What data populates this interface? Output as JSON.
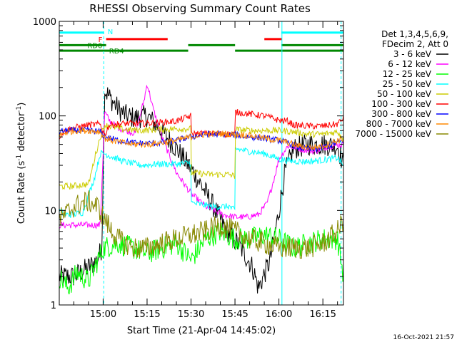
{
  "chart_data": {
    "type": "line",
    "title": "RHESSI Observing Summary Count Rates",
    "xlabel": "Start Time (21-Apr-04 14:45:02)",
    "ylabel_main": "Count Rate (s",
    "ylabel_sup1": "-1",
    "ylabel_mid": " detector",
    "ylabel_sup2": "-1",
    "ylabel_end": ")",
    "timestamp": "16-Oct-2021 21:57",
    "y_scale": "log",
    "ylim": [
      1,
      1000
    ],
    "xlim_minutes": [
      0,
      97
    ],
    "x_ticks": [
      {
        "label": "15:00",
        "min": 14.97
      },
      {
        "label": "15:15",
        "min": 29.97
      },
      {
        "label": "15:30",
        "min": 44.97
      },
      {
        "label": "15:45",
        "min": 59.97
      },
      {
        "label": "16:00",
        "min": 74.97
      },
      {
        "label": "16:15",
        "min": 89.97
      }
    ],
    "y_ticks": [
      {
        "label": "1000",
        "value": 1000
      },
      {
        "label": "100",
        "value": 100
      },
      {
        "label": "10",
        "value": 10
      },
      {
        "label": "1",
        "value": 1
      }
    ],
    "legend_header": [
      "Det 1,3,4,5,6,9,",
      "FDecim 2, Att 0"
    ],
    "legend_position": "right",
    "series": [
      {
        "name": "3 - 6 keV",
        "color": "#000000",
        "x": [
          0,
          5,
          10,
          13,
          14.5,
          15.5,
          17,
          20,
          23,
          26,
          30,
          34,
          40,
          46,
          52,
          56,
          62,
          66,
          68,
          72,
          75,
          77,
          80,
          85,
          90,
          95,
          97
        ],
        "y": [
          2,
          2,
          2.5,
          3,
          4,
          190,
          160,
          120,
          100,
          95,
          100,
          75,
          45,
          25,
          12,
          7,
          4,
          2.5,
          1.5,
          3,
          10,
          25,
          45,
          50,
          50,
          48,
          30
        ]
      },
      {
        "name": "6 - 12 keV",
        "color": "#ff00ff",
        "x": [
          0,
          5,
          10,
          14,
          15.5,
          17,
          20,
          23,
          26,
          29,
          30,
          32,
          35,
          40,
          45,
          50,
          56,
          60,
          64,
          68,
          71,
          73,
          75,
          78,
          82,
          87,
          92,
          97
        ],
        "y": [
          7,
          7,
          7,
          7,
          110,
          90,
          75,
          70,
          65,
          150,
          220,
          120,
          60,
          25,
          15,
          11,
          9,
          8.5,
          8.5,
          9,
          12,
          20,
          35,
          48,
          45,
          42,
          48,
          50
        ]
      },
      {
        "name": "12 - 25 keV",
        "color": "#00ff00",
        "x": [
          0,
          3,
          6,
          10,
          15,
          20,
          25,
          30,
          35,
          40,
          45,
          50,
          55,
          60,
          65,
          70,
          75,
          80,
          85,
          90,
          95,
          97
        ],
        "y": [
          2,
          1.5,
          2.2,
          1.8,
          4,
          4.5,
          4,
          3.5,
          4,
          4.5,
          3,
          5,
          6,
          5,
          5,
          5.5,
          5,
          4,
          4.5,
          5,
          5,
          2
        ]
      },
      {
        "name": "25 - 50 keV",
        "color": "#00ffff",
        "x": [
          0,
          2,
          4,
          8,
          12,
          14,
          15.5,
          17,
          22,
          28,
          34,
          40,
          44.9,
          45.1,
          52,
          58,
          59.9,
          60.1,
          65,
          70,
          75,
          80,
          85,
          90,
          95,
          97
        ],
        "y": [
          10,
          9,
          9,
          9.5,
          22,
          40,
          40,
          38,
          33,
          30,
          31,
          31,
          32,
          12,
          11,
          11,
          10,
          45,
          42,
          40,
          35,
          33,
          33,
          34,
          36,
          30
        ]
      },
      {
        "name": "50 - 100 keV",
        "color": "#cccc00",
        "x": [
          0,
          2,
          4,
          10,
          12,
          14,
          15.5,
          17,
          22,
          28,
          34,
          40,
          44.9,
          45.1,
          52,
          58,
          59.9,
          60.1,
          65,
          70,
          75,
          80,
          85,
          90,
          95,
          97
        ],
        "y": [
          18,
          18,
          18,
          19,
          35,
          60,
          80,
          78,
          72,
          70,
          72,
          73,
          73,
          25,
          24,
          24,
          23,
          72,
          70,
          70,
          70,
          68,
          64,
          64,
          68,
          58
        ]
      },
      {
        "name": "100 - 300 keV",
        "color": "#ff0000",
        "x": [
          0,
          2,
          5,
          10,
          14,
          15.5,
          17,
          22,
          28,
          34,
          40,
          44.9,
          45.1,
          52,
          58,
          59.9,
          60.1,
          65,
          70,
          75,
          78,
          80,
          85,
          90,
          95,
          97
        ],
        "y": [
          60,
          70,
          75,
          80,
          82,
          62,
          80,
          83,
          83,
          85,
          88,
          100,
          65,
          65,
          64,
          64,
          110,
          105,
          100,
          90,
          88,
          80,
          78,
          78,
          82,
          95
        ]
      },
      {
        "name": "300 - 800 keV",
        "color": "#0000ff",
        "x": [
          0,
          3,
          6,
          10,
          14,
          15.5,
          20,
          25,
          30,
          35,
          40,
          45,
          50,
          55,
          60,
          65,
          70,
          75,
          78,
          82,
          86,
          90,
          95,
          97
        ],
        "y": [
          68,
          70,
          70,
          70,
          68,
          60,
          55,
          52,
          51,
          52,
          55,
          60,
          64,
          64,
          63,
          60,
          58,
          55,
          52,
          46,
          44,
          46,
          52,
          55
        ]
      },
      {
        "name": "800 - 7000 keV",
        "color": "#ff8800",
        "x": [
          0,
          3,
          6,
          10,
          14,
          15.5,
          20,
          25,
          30,
          35,
          40,
          45,
          50,
          55,
          60,
          65,
          70,
          75,
          78,
          82,
          86,
          90,
          95,
          97
        ],
        "y": [
          62,
          68,
          70,
          70,
          68,
          58,
          53,
          50,
          50,
          52,
          55,
          60,
          64,
          65,
          64,
          62,
          58,
          55,
          52,
          48,
          46,
          48,
          55,
          57
        ]
      },
      {
        "name": "7000 - 15000 keV",
        "color": "#888800",
        "x": [
          0,
          2,
          5,
          8,
          10,
          13,
          15.5,
          18,
          20,
          25,
          30,
          35,
          40,
          45,
          50,
          55,
          60,
          65,
          70,
          75,
          80,
          85,
          90,
          95,
          97
        ],
        "y": [
          8,
          9,
          11,
          12,
          12.5,
          11,
          8,
          6,
          5,
          4,
          4,
          4.5,
          5,
          5.5,
          6,
          7,
          6,
          5,
          4.5,
          4,
          4,
          4,
          4.5,
          6,
          8
        ]
      }
    ],
    "state_bars": [
      {
        "label": "N",
        "color": "#00ffff",
        "y": 760,
        "segments": [
          [
            0,
            15.2
          ],
          [
            75.8,
            97
          ]
        ]
      },
      {
        "label": "F",
        "color": "#ff0000",
        "y": 650,
        "segments": [
          [
            16,
            37
          ],
          [
            70,
            76
          ]
        ]
      },
      {
        "label": "RD0",
        "color": "#008800",
        "y": 560,
        "segments": [
          [
            0,
            16
          ],
          [
            44,
            60
          ],
          [
            75.8,
            97
          ]
        ]
      },
      {
        "label": "RD4",
        "color": "#008800",
        "y": 490,
        "segments": [
          [
            0,
            44
          ],
          [
            60,
            97
          ]
        ]
      }
    ],
    "vlines_solid": [
      76
    ],
    "vlines_dashed": [
      15.2,
      96.2
    ],
    "vline_color": "#00ffff"
  }
}
